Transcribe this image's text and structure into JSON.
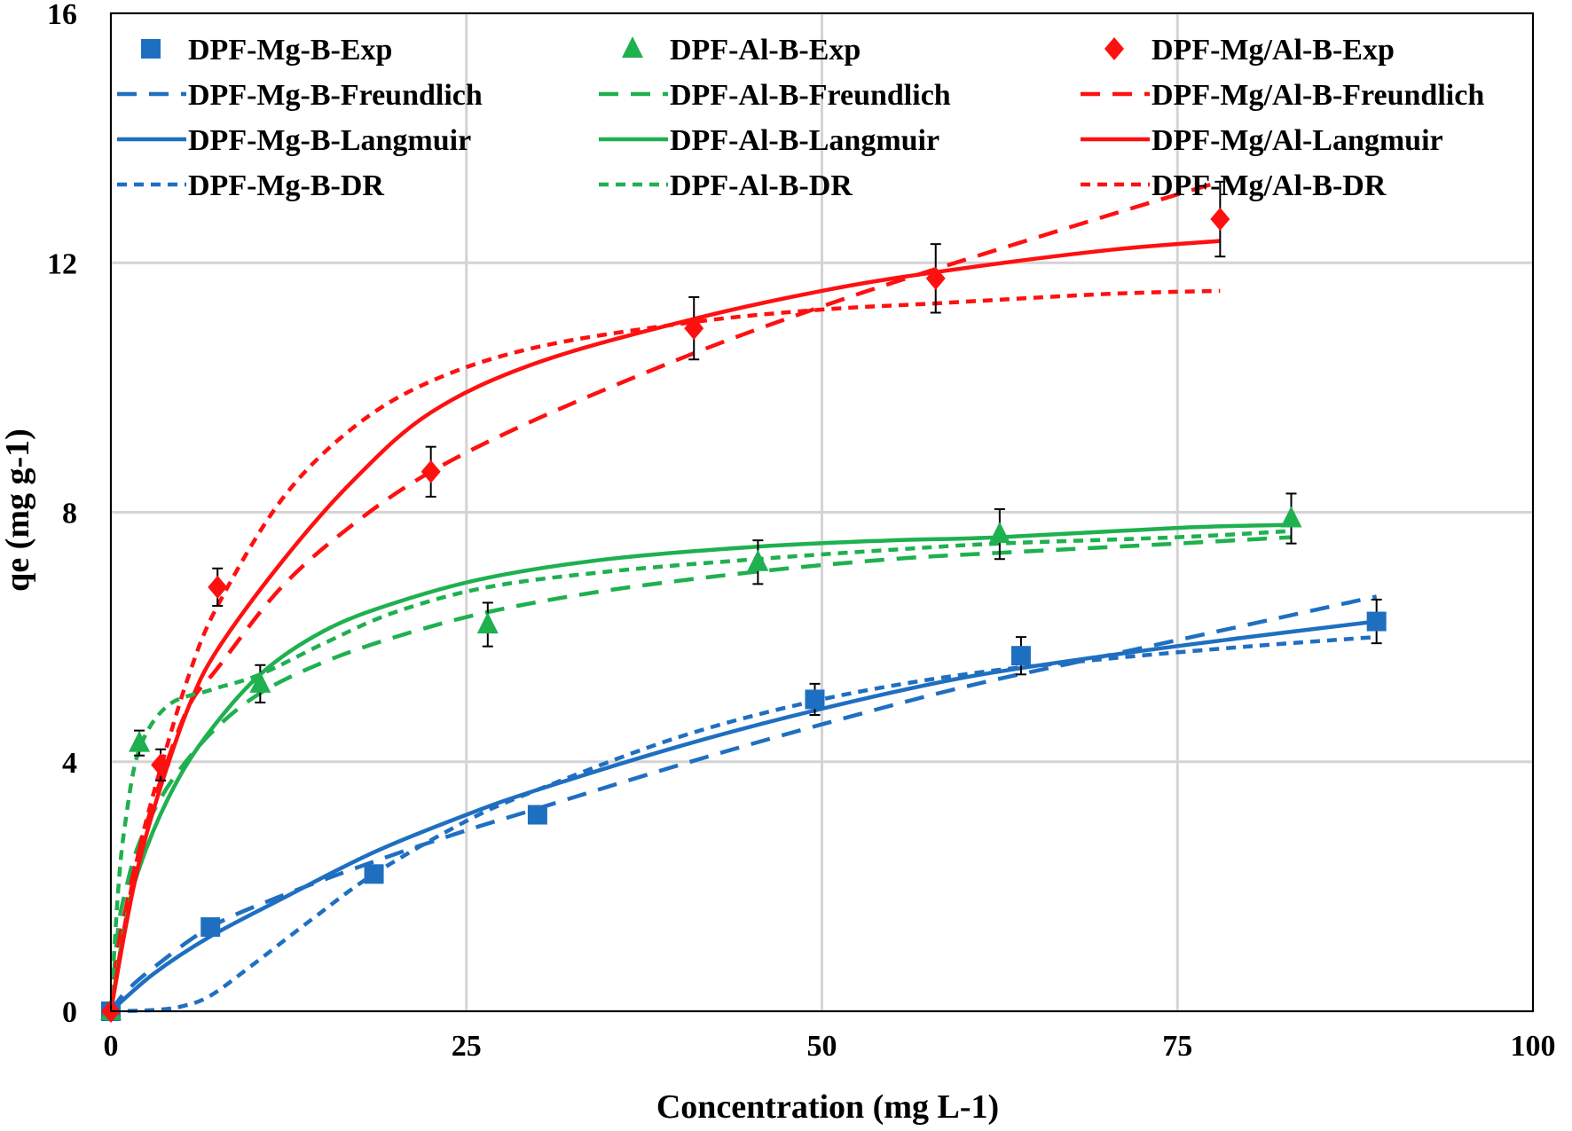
{
  "chart_data": {
    "type": "scatter",
    "xlabel": "Concentration  (mg L-1)",
    "ylabel": "qe (mg g-1)",
    "xlim": [
      0,
      100
    ],
    "ylim": [
      0,
      16
    ],
    "x_ticks": [
      0,
      25,
      50,
      75,
      100
    ],
    "y_ticks": [
      0,
      4,
      8,
      12,
      16
    ],
    "grid": true,
    "legend_position": "top",
    "colors": {
      "mg": "#1f6fc1",
      "al": "#1fb04f",
      "mgal": "#ff1010"
    },
    "series": [
      {
        "name": "DPF-Mg-B-Exp",
        "kind": "marker",
        "marker": "square",
        "color": "#1f6fc1",
        "x": [
          0,
          7,
          18.5,
          30,
          49.5,
          64,
          89
        ],
        "y": [
          0,
          1.35,
          2.2,
          3.15,
          5.0,
          5.7,
          6.25
        ],
        "err": [
          0,
          0,
          0,
          0,
          0.25,
          0.3,
          0.35
        ]
      },
      {
        "name": "DPF-Al-B-Exp",
        "kind": "marker",
        "marker": "triangle",
        "color": "#1fb04f",
        "x": [
          0,
          2,
          10.5,
          26.5,
          45.5,
          62.5,
          83
        ],
        "y": [
          0,
          4.3,
          5.25,
          6.2,
          7.2,
          7.65,
          7.9
        ],
        "err": [
          0,
          0.2,
          0.3,
          0.35,
          0.35,
          0.4,
          0.4
        ]
      },
      {
        "name": "DPF-Mg/Al-B-Exp",
        "kind": "marker",
        "marker": "diamond",
        "color": "#ff1010",
        "x": [
          0,
          3.5,
          7.5,
          22.5,
          41,
          58,
          78
        ],
        "y": [
          0,
          3.95,
          6.8,
          8.65,
          10.95,
          11.75,
          12.7
        ],
        "err": [
          0,
          0.25,
          0.3,
          0.4,
          0.5,
          0.55,
          0.6
        ]
      },
      {
        "name": "DPF-Mg-B-Freundlich",
        "kind": "line",
        "dash": "long",
        "color": "#1f6fc1",
        "x": [
          0,
          1,
          3,
          7,
          12,
          18.5,
          25,
          30,
          40,
          50,
          60,
          70,
          80,
          89
        ],
        "y": [
          0,
          0.3,
          0.7,
          1.35,
          1.85,
          2.4,
          2.9,
          3.25,
          3.95,
          4.6,
          5.2,
          5.7,
          6.2,
          6.65
        ]
      },
      {
        "name": "DPF-Al-B-Freundlich",
        "kind": "line",
        "dash": "long",
        "color": "#1fb04f",
        "x": [
          0,
          0.5,
          1,
          2,
          4,
          7,
          10.5,
          15,
          20,
          26.5,
          35,
          45.5,
          55,
          62.5,
          75,
          83
        ],
        "y": [
          0,
          1.3,
          1.9,
          2.7,
          3.6,
          4.45,
          5.1,
          5.6,
          6.0,
          6.4,
          6.75,
          7.05,
          7.25,
          7.35,
          7.5,
          7.6
        ]
      },
      {
        "name": "DPF-Mg/Al-B-Freundlich",
        "kind": "line",
        "dash": "long",
        "color": "#ff1010",
        "x": [
          0,
          0.5,
          1,
          2,
          3.5,
          5.5,
          7.5,
          12,
          17,
          22.5,
          30,
          41,
          50,
          58,
          70,
          78
        ],
        "y": [
          0,
          1.0,
          1.6,
          2.6,
          3.7,
          4.9,
          5.5,
          6.8,
          7.8,
          8.65,
          9.5,
          10.55,
          11.3,
          11.9,
          12.75,
          13.3
        ]
      },
      {
        "name": "DPF-Mg-B-Langmuir",
        "kind": "line",
        "dash": "solid",
        "color": "#1f6fc1",
        "x": [
          0,
          3,
          7,
          12,
          18.5,
          25,
          30,
          40,
          50,
          60,
          70,
          80,
          89
        ],
        "y": [
          0,
          0.6,
          1.2,
          1.8,
          2.55,
          3.15,
          3.55,
          4.25,
          4.85,
          5.35,
          5.7,
          6.0,
          6.25
        ]
      },
      {
        "name": "DPF-Al-B-Langmuir",
        "kind": "line",
        "dash": "solid",
        "color": "#1fb04f",
        "x": [
          0,
          1,
          2,
          4,
          6.5,
          10.5,
          15,
          20,
          26.5,
          35,
          45.5,
          55,
          62.5,
          75,
          83
        ],
        "y": [
          0,
          1.4,
          2.3,
          3.4,
          4.35,
          5.4,
          6.1,
          6.55,
          6.95,
          7.25,
          7.45,
          7.55,
          7.6,
          7.75,
          7.8
        ]
      },
      {
        "name": "DPF-Mg/Al-Langmuir",
        "kind": "line",
        "dash": "solid",
        "color": "#ff1010",
        "x": [
          0,
          1,
          2,
          3.5,
          5.5,
          7.5,
          12,
          17,
          22.5,
          30,
          41,
          50,
          58,
          70,
          78
        ],
        "y": [
          0,
          1.3,
          2.4,
          3.6,
          4.9,
          5.8,
          7.2,
          8.5,
          9.6,
          10.4,
          11.1,
          11.55,
          11.85,
          12.2,
          12.35
        ]
      },
      {
        "name": "DPF-Mg-B-DR",
        "kind": "line",
        "dash": "short",
        "color": "#1f6fc1",
        "x": [
          0,
          3,
          5,
          7,
          10,
          14,
          18.5,
          25,
          30,
          40,
          50,
          60,
          70,
          80,
          89
        ],
        "y": [
          0,
          0.02,
          0.08,
          0.25,
          0.75,
          1.45,
          2.2,
          3.05,
          3.55,
          4.4,
          5.0,
          5.4,
          5.65,
          5.85,
          6.0
        ]
      },
      {
        "name": "DPF-Al-B-DR",
        "kind": "line",
        "dash": "short",
        "color": "#1fb04f",
        "x": [
          0,
          0.5,
          1,
          2,
          4,
          7,
          10.5,
          15,
          20,
          26.5,
          35,
          45.5,
          55,
          62.5,
          75,
          83
        ],
        "y": [
          0,
          1.9,
          3.0,
          4.2,
          4.9,
          5.15,
          5.4,
          5.9,
          6.4,
          6.8,
          7.05,
          7.25,
          7.4,
          7.5,
          7.6,
          7.7
        ]
      },
      {
        "name": "DPF-Mg/Al-B-DR",
        "kind": "line",
        "dash": "short",
        "color": "#ff1010",
        "x": [
          0,
          1,
          2,
          3.5,
          5.5,
          7.5,
          12,
          17,
          22.5,
          30,
          41,
          50,
          58,
          70,
          78
        ],
        "y": [
          0,
          1.4,
          2.6,
          3.9,
          5.4,
          6.5,
          8.2,
          9.35,
          10.1,
          10.65,
          11.05,
          11.25,
          11.35,
          11.5,
          11.55
        ]
      }
    ]
  }
}
